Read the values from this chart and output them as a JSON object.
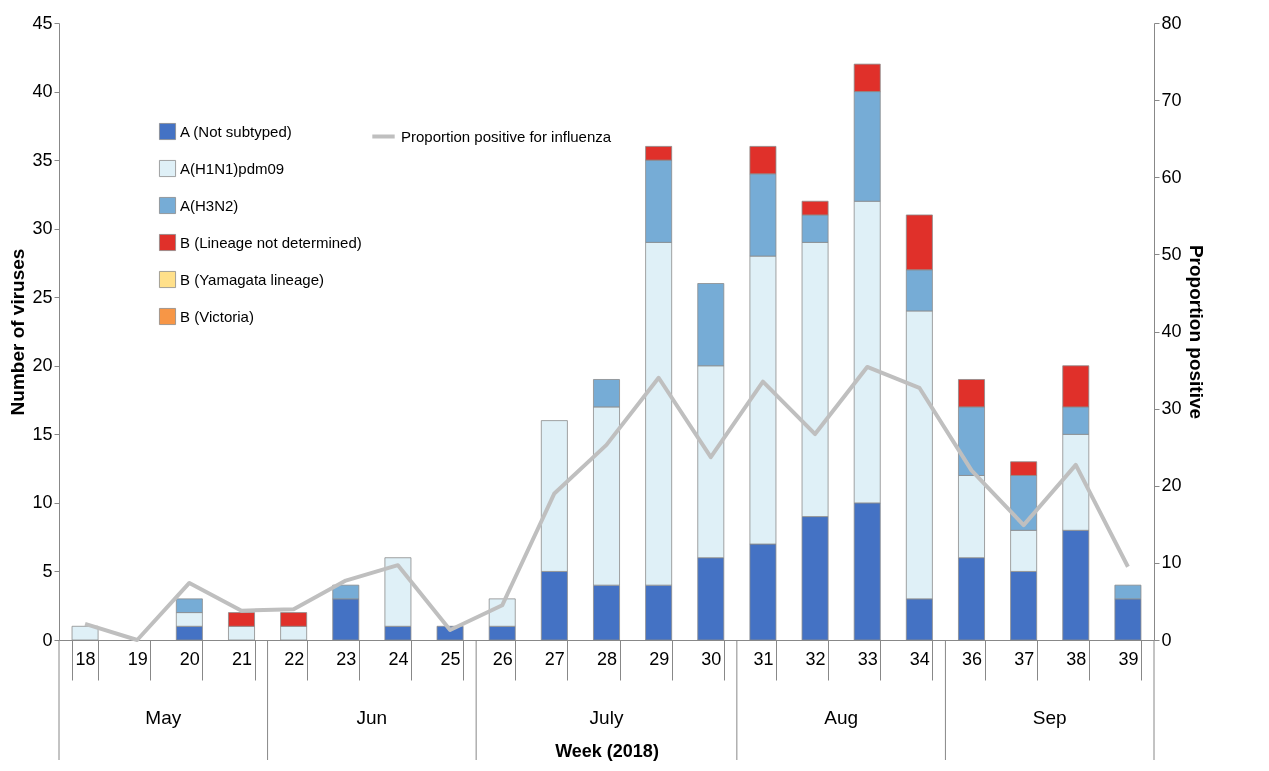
{
  "chart_data": {
    "type": "bar",
    "stacked": true,
    "xlabel": "Week (2018)",
    "ylabel": "Number of viruses",
    "y2label": "Proportion positive",
    "legend": "top left",
    "categories": [
      "18",
      "19",
      "20",
      "21",
      "22",
      "23",
      "24",
      "25",
      "26",
      "27",
      "28",
      "29",
      "30",
      "31",
      "32",
      "33",
      "34",
      "36",
      "37",
      "38",
      "39"
    ],
    "ylim": [
      0,
      45
    ],
    "yticks": [
      0,
      5,
      10,
      15,
      20,
      25,
      30,
      35,
      40,
      45
    ],
    "y2lim": [
      0,
      80
    ],
    "y2ticks": [
      0,
      10,
      20,
      30,
      40,
      50,
      60,
      70,
      80
    ],
    "series": [
      {
        "name": "A (Not subtyped)",
        "color": "#4472c4",
        "values": [
          0,
          0,
          1,
          0,
          0,
          3,
          1,
          1,
          1,
          5,
          4,
          4,
          6,
          7,
          9,
          10,
          3,
          6,
          5,
          8,
          3
        ]
      },
      {
        "name": "A(H1N1)pdm09",
        "color": "#dff0f7",
        "values": [
          1,
          0,
          1,
          1,
          1,
          0,
          5,
          0,
          2,
          11,
          13,
          25,
          14,
          21,
          20,
          22,
          21,
          6,
          3,
          7,
          0
        ]
      },
      {
        "name": "A(H3N2)",
        "color": "#76acd6",
        "values": [
          0,
          0,
          1,
          0,
          0,
          1,
          0,
          0,
          0,
          0,
          2,
          6,
          6,
          6,
          2,
          8,
          3,
          5,
          4,
          2,
          1
        ]
      },
      {
        "name": "B (Lineage not determined)",
        "color": "#e0302a",
        "values": [
          0,
          0,
          0,
          1,
          1,
          0,
          0,
          0,
          0,
          0,
          0,
          1,
          0,
          2,
          1,
          2,
          4,
          2,
          1,
          3,
          0
        ]
      },
      {
        "name": "B (Yamagata lineage)",
        "color": "#ffe08a",
        "values": [
          0,
          0,
          0,
          0,
          0,
          0,
          0,
          0,
          0,
          0,
          0,
          0,
          0,
          0,
          0,
          0,
          0,
          0,
          0,
          0,
          0
        ]
      },
      {
        "name": "B (Victoria)",
        "color": "#f79646",
        "values": [
          0,
          0,
          0,
          0,
          0,
          0,
          0,
          0,
          0,
          0,
          0,
          0,
          0,
          0,
          0,
          0,
          0,
          0,
          0,
          0,
          0
        ]
      },
      {
        "name": "Proportion positive for influenza",
        "type": "line",
        "axis": "y2",
        "color": "#bfbfbf",
        "values": [
          2.1,
          0,
          7.4,
          3.8,
          4,
          7.7,
          9.7,
          1.3,
          4.5,
          19,
          25.3,
          34,
          23.7,
          33.5,
          26.7,
          35.4,
          32.7,
          22,
          14.9,
          22.7,
          9.5
        ]
      }
    ],
    "annotations": [
      "May",
      "Jun",
      "July",
      "Aug",
      "Sep"
    ]
  }
}
